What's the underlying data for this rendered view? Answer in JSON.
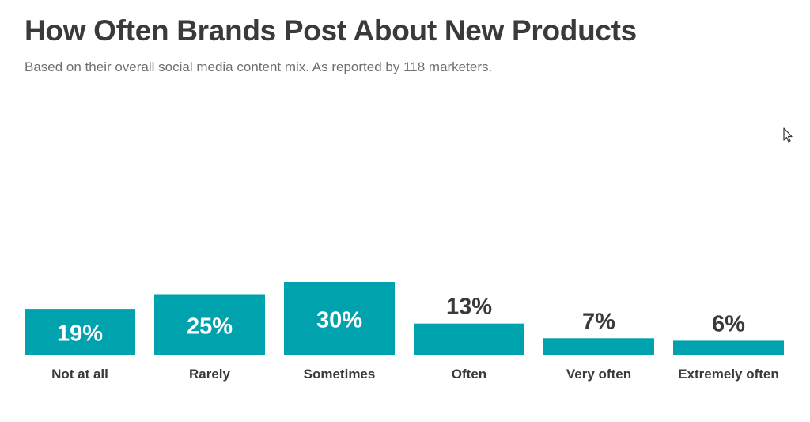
{
  "header": {
    "title": "How Often Brands Post About New Products",
    "subtitle": "Based on their overall social media content mix. As reported by 118 marketers."
  },
  "colors": {
    "bar": "#00a3ad",
    "label_inside": "#ffffff",
    "label_outside": "#3a3a3a",
    "category": "#3a3a3a"
  },
  "chart_data": {
    "type": "bar",
    "title": "How Often Brands Post About New Products",
    "subtitle": "Based on their overall social media content mix. As reported by 118 marketers.",
    "xlabel": "",
    "ylabel": "",
    "ylim": [
      0,
      30
    ],
    "grid": false,
    "categories": [
      "Not at all",
      "Rarely",
      "Sometimes",
      "Often",
      "Very often",
      "Extremely often"
    ],
    "values": [
      19,
      25,
      30,
      13,
      7,
      6
    ],
    "data_labels": [
      "19%",
      "25%",
      "30%",
      "13%",
      "7%",
      "6%"
    ]
  }
}
